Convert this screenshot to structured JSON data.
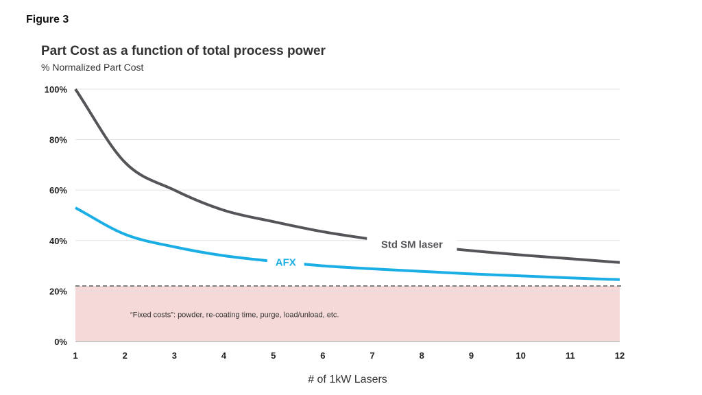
{
  "figure_label": "Figure 3",
  "chart_data": {
    "type": "line",
    "title": "Part Cost as a function of total process power",
    "subtitle": "% Normalized Part Cost",
    "xlabel": "# of 1kW Lasers",
    "ylabel": "",
    "xlim": [
      1,
      12
    ],
    "ylim": [
      0,
      100
    ],
    "x_ticks": [
      1,
      2,
      3,
      4,
      5,
      6,
      7,
      8,
      9,
      10,
      11,
      12
    ],
    "x_tick_labels": [
      "1",
      "2",
      "3",
      "4",
      "5",
      "6",
      "7",
      "8",
      "9",
      "10",
      "11",
      "12"
    ],
    "y_ticks": [
      0,
      20,
      40,
      60,
      80,
      100
    ],
    "y_tick_labels": [
      "0%",
      "20%",
      "40%",
      "60%",
      "80%",
      "100%"
    ],
    "grid": "horizontal",
    "legend": "none (inline series labels)",
    "x": [
      1,
      2,
      3,
      4,
      5,
      6,
      7,
      8,
      9,
      10,
      11,
      12
    ],
    "series": [
      {
        "name": "Std SM laser",
        "color": "#555559",
        "values": [
          100,
          71,
          60,
          52,
          47.5,
          43.5,
          40.5,
          38,
          36,
          34.3,
          32.8,
          31.3
        ]
      },
      {
        "name": "AFX",
        "color": "#1aaee5",
        "values": [
          53,
          42.5,
          37.5,
          34,
          31.8,
          30,
          28.8,
          27.8,
          26.8,
          26,
          25.2,
          24.5
        ]
      }
    ],
    "fixed_costs": {
      "value": 22,
      "note": "“Fixed costs”: powder, re-coating time, purge, load/unload, etc.",
      "fill_color": "#f5d9d9",
      "line_color": "#808080"
    }
  }
}
